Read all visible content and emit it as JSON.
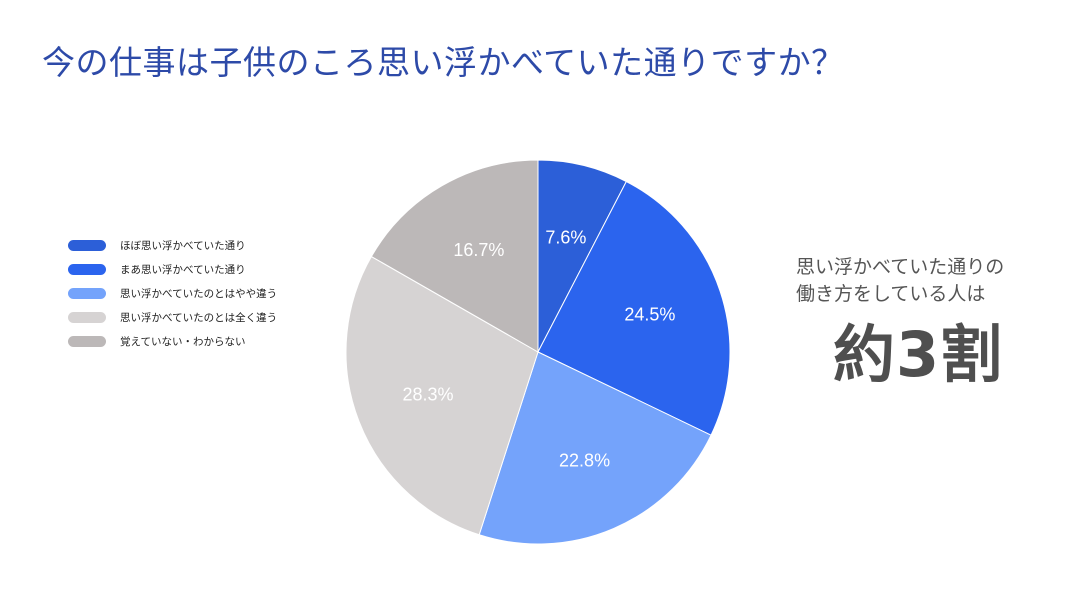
{
  "title": "今の仕事は子供のころ思い浮かべていた通りですか？",
  "side_note": {
    "line1": "思い浮かべていた通りの",
    "line2": "働き方をしている人は",
    "stat": "約3割"
  },
  "chart_data": {
    "type": "pie",
    "title": "今の仕事は子供のころ思い浮かべていた通りですか？",
    "slices": [
      {
        "label": "ほぼ思い浮かべていた通り",
        "value": 7.6,
        "display": "7.6%",
        "color": "#2c5fd8"
      },
      {
        "label": "まあ思い浮かべていた通り",
        "value": 24.5,
        "display": "24.5%",
        "color": "#2b64ee"
      },
      {
        "label": "思い浮かべていたのとはやや違う",
        "value": 22.8,
        "display": "22.8%",
        "color": "#74a3fb"
      },
      {
        "label": "思い浮かべていたのとは全く違う",
        "value": 28.3,
        "display": "28.3%",
        "color": "#d6d3d3"
      },
      {
        "label": "覚えていない・わからない",
        "value": 16.7,
        "display": "16.7%",
        "color": "#bcb8b8"
      }
    ],
    "start_angle_deg": 0,
    "direction": "clockwise",
    "legend_position": "left"
  }
}
